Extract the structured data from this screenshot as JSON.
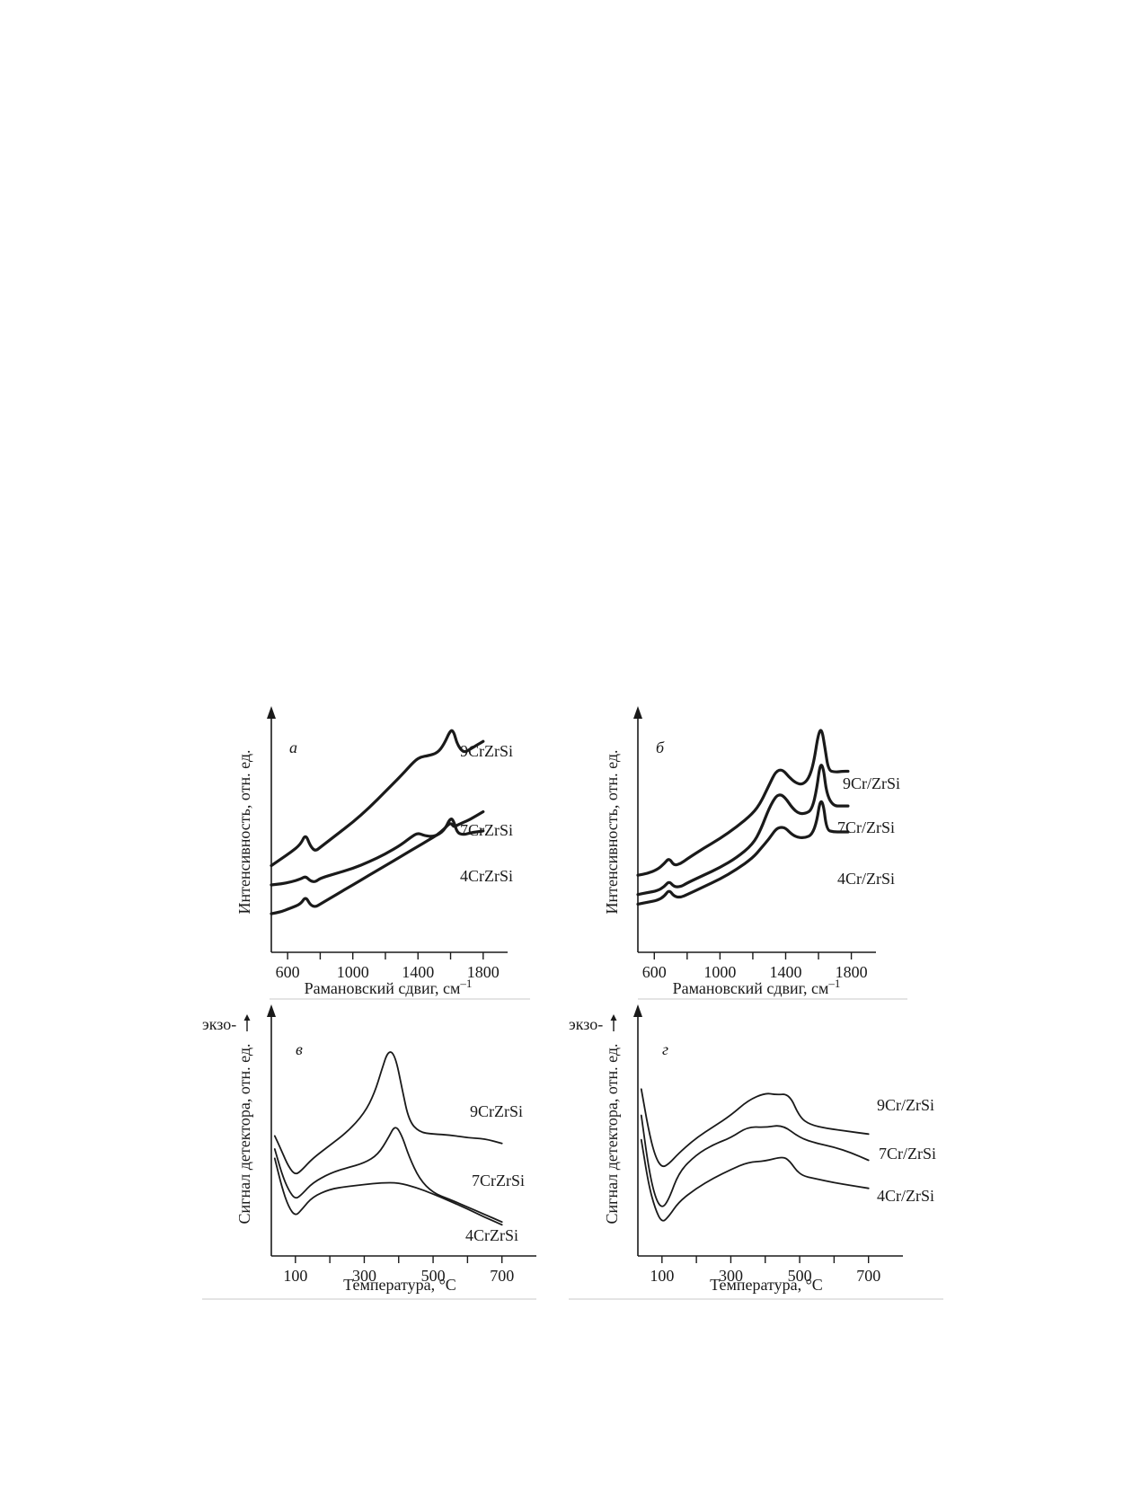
{
  "chart_data": [
    {
      "id": "a",
      "panel_letter": "а",
      "type": "line",
      "xlabel": "Рамановский сдвиг, см",
      "xlabel_sup": "–1",
      "ylabel": "Интенсивность, отн. ед.",
      "xlim": [
        500,
        1950
      ],
      "ylim": [
        0,
        10
      ],
      "xticks": [
        600,
        800,
        1000,
        1200,
        1400,
        1600,
        1800
      ],
      "xtick_labels": [
        "600",
        "",
        "1000",
        "",
        "1400",
        "",
        "1800"
      ],
      "series": [
        {
          "name": "9CrZrSi",
          "x": [
            500,
            560,
            620,
            680,
            710,
            740,
            770,
            800,
            900,
            1000,
            1100,
            1200,
            1300,
            1380,
            1420,
            1460,
            1520,
            1560,
            1600,
            1620,
            1640,
            1680,
            1720,
            1760,
            1800
          ],
          "y": [
            3.0,
            3.35,
            3.7,
            4.1,
            4.65,
            4.0,
            3.75,
            3.95,
            4.6,
            5.25,
            6.0,
            6.85,
            7.7,
            8.45,
            8.65,
            8.7,
            8.85,
            9.3,
            10.05,
            9.95,
            9.3,
            8.85,
            9.05,
            9.25,
            9.45
          ]
        },
        {
          "name": "7CrZrSi",
          "x": [
            500,
            560,
            620,
            680,
            710,
            740,
            770,
            800,
            900,
            1000,
            1100,
            1200,
            1300,
            1360,
            1400,
            1440,
            1500,
            1560,
            1600,
            1620,
            1640,
            1680,
            1720,
            1760,
            1800
          ],
          "y": [
            2.0,
            2.05,
            2.15,
            2.3,
            2.45,
            2.2,
            2.15,
            2.35,
            2.6,
            2.85,
            3.2,
            3.6,
            4.1,
            4.5,
            4.7,
            4.55,
            4.5,
            4.8,
            5.5,
            5.3,
            4.7,
            4.6,
            4.7,
            4.75,
            4.8
          ]
        },
        {
          "name": "4CrZrSi",
          "x": [
            500,
            560,
            620,
            680,
            710,
            740,
            770,
            800,
            900,
            1000,
            1100,
            1200,
            1300,
            1400,
            1460,
            1520,
            1560,
            1600,
            1620,
            1640,
            1680,
            1720,
            1760,
            1800
          ],
          "y": [
            0.5,
            0.6,
            0.8,
            1.0,
            1.4,
            0.95,
            0.85,
            1.0,
            1.5,
            2.0,
            2.5,
            3.0,
            3.5,
            4.0,
            4.3,
            4.6,
            4.9,
            5.25,
            5.0,
            5.1,
            5.25,
            5.4,
            5.6,
            5.8
          ]
        }
      ],
      "label_positions": [
        "top-right",
        "mid-right",
        "lower-right"
      ]
    },
    {
      "id": "b",
      "panel_letter": "б",
      "type": "line",
      "xlabel": "Рамановский сдвиг, см",
      "xlabel_sup": "–1",
      "ylabel": "Интенсивность, отн. ед.",
      "xlim": [
        500,
        1950
      ],
      "ylim": [
        0,
        10
      ],
      "xticks": [
        600,
        800,
        1000,
        1200,
        1400,
        1600,
        1800
      ],
      "xtick_labels": [
        "600",
        "",
        "1000",
        "",
        "1400",
        "",
        "1800"
      ],
      "series": [
        {
          "name": "9Cr/ZrSi",
          "x": [
            500,
            560,
            620,
            660,
            690,
            720,
            760,
            800,
            900,
            1000,
            1100,
            1200,
            1250,
            1300,
            1340,
            1380,
            1420,
            1460,
            1500,
            1540,
            1570,
            1600,
            1620,
            1640,
            1660,
            1700,
            1750,
            1780
          ],
          "y": [
            2.5,
            2.6,
            2.8,
            3.1,
            3.4,
            3.0,
            3.1,
            3.35,
            3.9,
            4.4,
            5.0,
            5.7,
            6.3,
            7.2,
            7.9,
            8.0,
            7.6,
            7.3,
            7.2,
            7.5,
            8.3,
            9.9,
            10.1,
            9.1,
            7.95,
            7.85,
            7.9,
            7.9
          ]
        },
        {
          "name": "7Cr/ZrSi",
          "x": [
            500,
            560,
            620,
            660,
            690,
            720,
            760,
            800,
            900,
            1000,
            1100,
            1200,
            1250,
            1300,
            1340,
            1370,
            1400,
            1440,
            1480,
            1520,
            1560,
            1590,
            1610,
            1630,
            1650,
            1690,
            1740,
            1780
          ],
          "y": [
            1.5,
            1.6,
            1.7,
            1.9,
            2.2,
            1.9,
            1.9,
            2.1,
            2.5,
            2.9,
            3.4,
            4.1,
            4.9,
            6.0,
            6.6,
            6.7,
            6.5,
            6.0,
            5.7,
            5.7,
            5.9,
            7.0,
            8.3,
            8.1,
            6.7,
            6.1,
            6.1,
            6.1
          ]
        },
        {
          "name": "4Cr/ZrSi",
          "x": [
            500,
            560,
            620,
            660,
            690,
            720,
            760,
            800,
            900,
            1000,
            1100,
            1200,
            1250,
            1300,
            1340,
            1370,
            1400,
            1440,
            1480,
            1520,
            1560,
            1590,
            1610,
            1630,
            1650,
            1690,
            1740,
            1780
          ],
          "y": [
            1.0,
            1.1,
            1.2,
            1.4,
            1.75,
            1.4,
            1.35,
            1.5,
            1.9,
            2.3,
            2.8,
            3.4,
            3.9,
            4.4,
            4.9,
            5.0,
            4.95,
            4.6,
            4.45,
            4.45,
            4.6,
            5.3,
            6.4,
            6.2,
            4.85,
            4.75,
            4.75,
            4.75
          ]
        }
      ],
      "label_positions": [
        "top-right",
        "mid-right",
        "lower-right"
      ]
    },
    {
      "id": "v",
      "panel_letter": "в",
      "type": "line",
      "xlabel": "Температура, °С",
      "ylabel": "Сигнал детектора, отн. ед.",
      "y_arrow_label": "экзо-",
      "xlim": [
        30,
        800
      ],
      "ylim": [
        0,
        10
      ],
      "xticks": [
        100,
        200,
        300,
        400,
        500,
        600,
        700
      ],
      "xtick_labels": [
        "100",
        "",
        "300",
        "",
        "500",
        "",
        "700"
      ],
      "series": [
        {
          "name": "9CrZrSi",
          "x": [
            40,
            60,
            80,
            100,
            120,
            150,
            200,
            250,
            300,
            330,
            350,
            370,
            390,
            410,
            430,
            460,
            500,
            550,
            600,
            650,
            700
          ],
          "y": [
            5.1,
            4.3,
            3.45,
            3.0,
            3.3,
            3.9,
            4.6,
            5.3,
            6.3,
            7.4,
            8.6,
            9.7,
            9.4,
            7.6,
            5.9,
            5.3,
            5.2,
            5.15,
            5.0,
            4.95,
            4.7
          ]
        },
        {
          "name": "7CrZrSi",
          "x": [
            40,
            60,
            80,
            100,
            120,
            150,
            200,
            250,
            300,
            340,
            370,
            390,
            410,
            430,
            460,
            500,
            550,
            600,
            650,
            700
          ],
          "y": [
            4.4,
            3.1,
            2.2,
            1.7,
            2.0,
            2.6,
            3.1,
            3.4,
            3.65,
            4.1,
            5.0,
            5.7,
            5.1,
            4.0,
            2.8,
            2.05,
            1.7,
            1.3,
            0.9,
            0.5
          ]
        },
        {
          "name": "4CrZrSi",
          "x": [
            40,
            60,
            80,
            100,
            120,
            150,
            200,
            250,
            300,
            350,
            400,
            450,
            500,
            550,
            600,
            650,
            700
          ],
          "y": [
            3.9,
            2.4,
            1.3,
            0.8,
            1.2,
            1.85,
            2.25,
            2.4,
            2.5,
            2.6,
            2.6,
            2.35,
            2.0,
            1.6,
            1.2,
            0.75,
            0.35
          ]
        }
      ],
      "label_positions": [
        "top-right",
        "mid-right",
        "lower-right"
      ]
    },
    {
      "id": "g",
      "panel_letter": "г",
      "type": "line",
      "xlabel": "Температура, °С",
      "ylabel": "Сигнал детектора, отн. ед.",
      "y_arrow_label": "экзо-",
      "xlim": [
        30,
        800
      ],
      "ylim": [
        0,
        10
      ],
      "xticks": [
        100,
        200,
        300,
        400,
        500,
        600,
        700
      ],
      "xtick_labels": [
        "100",
        "",
        "300",
        "",
        "500",
        "",
        "700"
      ],
      "series": [
        {
          "name": "9Cr/ZrSi",
          "x": [
            40,
            60,
            80,
            100,
            120,
            150,
            200,
            250,
            300,
            350,
            400,
            430,
            470,
            500,
            530,
            580,
            640,
            700
          ],
          "y": [
            7.6,
            5.5,
            4.0,
            3.4,
            3.6,
            4.2,
            5.0,
            5.6,
            6.2,
            7.0,
            7.4,
            7.3,
            7.35,
            6.1,
            5.7,
            5.5,
            5.35,
            5.2
          ]
        },
        {
          "name": "7Cr/ZrSi",
          "x": [
            40,
            60,
            80,
            100,
            120,
            150,
            200,
            250,
            300,
            350,
            400,
            450,
            500,
            550,
            600,
            650,
            700
          ],
          "y": [
            6.2,
            3.5,
            1.8,
            1.2,
            1.7,
            3.2,
            4.1,
            4.65,
            5.0,
            5.6,
            5.55,
            5.7,
            5.0,
            4.7,
            4.5,
            4.2,
            3.8
          ]
        },
        {
          "name": "4Cr/ZrSi",
          "x": [
            40,
            60,
            80,
            100,
            120,
            150,
            200,
            250,
            300,
            350,
            400,
            450,
            470,
            500,
            550,
            600,
            650,
            700
          ],
          "y": [
            4.9,
            2.6,
            1.2,
            0.45,
            0.8,
            1.6,
            2.3,
            2.85,
            3.3,
            3.7,
            3.75,
            4.0,
            3.8,
            3.0,
            2.8,
            2.6,
            2.45,
            2.3
          ]
        }
      ],
      "label_positions": [
        "top-right",
        "mid-right",
        "lower-right"
      ]
    }
  ]
}
